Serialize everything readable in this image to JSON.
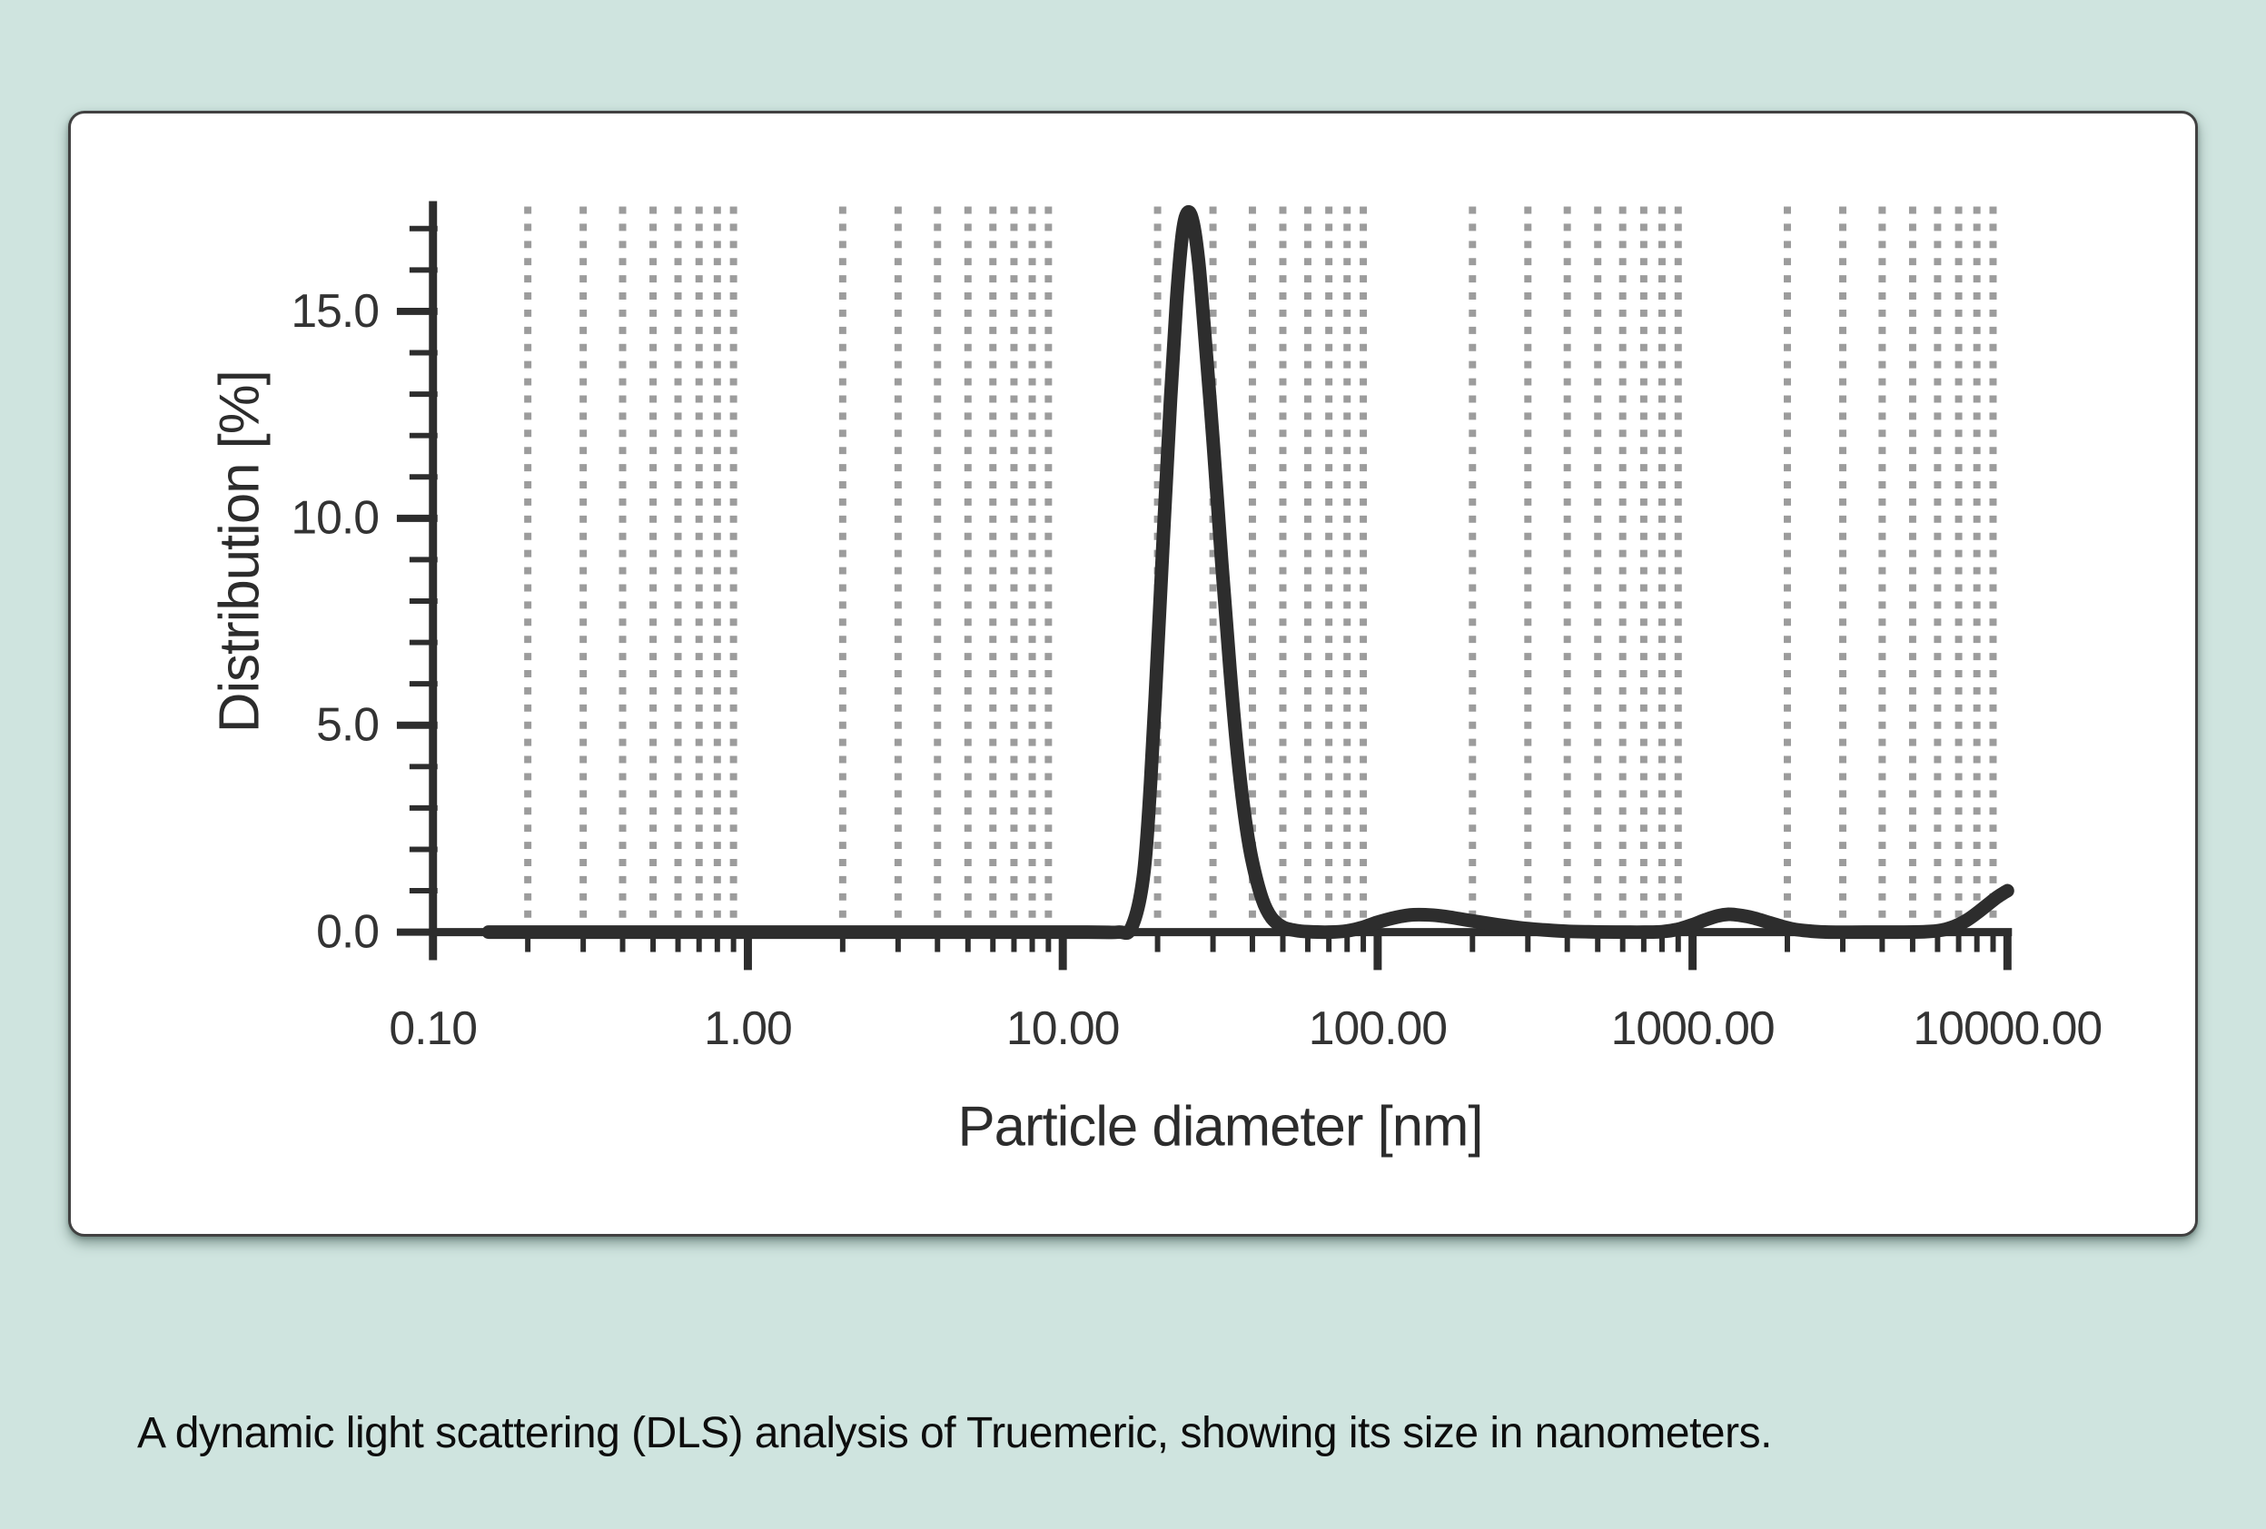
{
  "page": {
    "background_color": "#cfe4df",
    "card_color": "#ffffff",
    "caption": "A dynamic light scattering (DLS) analysis of Truemeric, showing its size in nanometers."
  },
  "chart_data": {
    "type": "line",
    "title": "",
    "xlabel": "Particle diameter [nm]",
    "ylabel": "Distribution [%]",
    "x_scale": "log",
    "xlim": [
      0.1,
      10000
    ],
    "ylim": [
      0,
      17.6
    ],
    "x_ticks_major": [
      0.1,
      1,
      10,
      100,
      1000,
      10000
    ],
    "x_tick_labels": [
      "0.10",
      "1.00",
      "10.00",
      "100.00",
      "1000.00",
      "10000.00"
    ],
    "x_minor_decades": [
      0.1,
      1,
      10,
      100,
      1000
    ],
    "y_ticks_major": [
      0,
      5,
      10,
      15
    ],
    "y_tick_labels": [
      "0.0",
      "5.0",
      "10.0",
      "15.0"
    ],
    "y_ticks_minor": [
      1,
      2,
      3,
      4,
      6,
      7,
      8,
      9,
      11,
      12,
      13,
      14,
      16,
      17
    ],
    "grid": "vertical dotted gridlines at minor log positions only",
    "legend": "none",
    "series": [
      {
        "name": "distribution",
        "points": [
          [
            0.15,
            0
          ],
          [
            1,
            0
          ],
          [
            5,
            0
          ],
          [
            12,
            0
          ],
          [
            15,
            0
          ],
          [
            16.5,
            0.1
          ],
          [
            18,
            1.3
          ],
          [
            19,
            3.6
          ],
          [
            20,
            6.8
          ],
          [
            21,
            10.0
          ],
          [
            22,
            12.9
          ],
          [
            23,
            15.3
          ],
          [
            24,
            16.9
          ],
          [
            25,
            17.4
          ],
          [
            26,
            17.1
          ],
          [
            27,
            16.2
          ],
          [
            28,
            14.8
          ],
          [
            30,
            11.9
          ],
          [
            32,
            8.9
          ],
          [
            34,
            6.3
          ],
          [
            36,
            4.2
          ],
          [
            38,
            2.7
          ],
          [
            40,
            1.7
          ],
          [
            43,
            0.8
          ],
          [
            46,
            0.35
          ],
          [
            50,
            0.12
          ],
          [
            55,
            0.04
          ],
          [
            60,
            0.01
          ],
          [
            70,
            0
          ],
          [
            80,
            0.03
          ],
          [
            90,
            0.12
          ],
          [
            100,
            0.24
          ],
          [
            115,
            0.36
          ],
          [
            130,
            0.42
          ],
          [
            150,
            0.41
          ],
          [
            170,
            0.36
          ],
          [
            200,
            0.27
          ],
          [
            240,
            0.18
          ],
          [
            280,
            0.11
          ],
          [
            330,
            0.06
          ],
          [
            400,
            0.02
          ],
          [
            500,
            0.005
          ],
          [
            600,
            0
          ],
          [
            700,
            0
          ],
          [
            800,
            0.01
          ],
          [
            900,
            0.07
          ],
          [
            1000,
            0.18
          ],
          [
            1100,
            0.3
          ],
          [
            1200,
            0.39
          ],
          [
            1300,
            0.43
          ],
          [
            1400,
            0.41
          ],
          [
            1550,
            0.35
          ],
          [
            1700,
            0.26
          ],
          [
            1900,
            0.15
          ],
          [
            2100,
            0.07
          ],
          [
            2400,
            0.02
          ],
          [
            2700,
            0
          ],
          [
            3500,
            0
          ],
          [
            4500,
            0
          ],
          [
            5500,
            0.01
          ],
          [
            6200,
            0.05
          ],
          [
            6800,
            0.14
          ],
          [
            7400,
            0.28
          ],
          [
            8000,
            0.46
          ],
          [
            8700,
            0.68
          ],
          [
            9300,
            0.85
          ],
          [
            9800,
            0.96
          ],
          [
            10000,
            1.0
          ]
        ]
      }
    ],
    "colors": {
      "line": "#2d2d2d",
      "axis": "#2d2d2d",
      "grid": "#9c9c9c",
      "text": "#333333"
    }
  }
}
